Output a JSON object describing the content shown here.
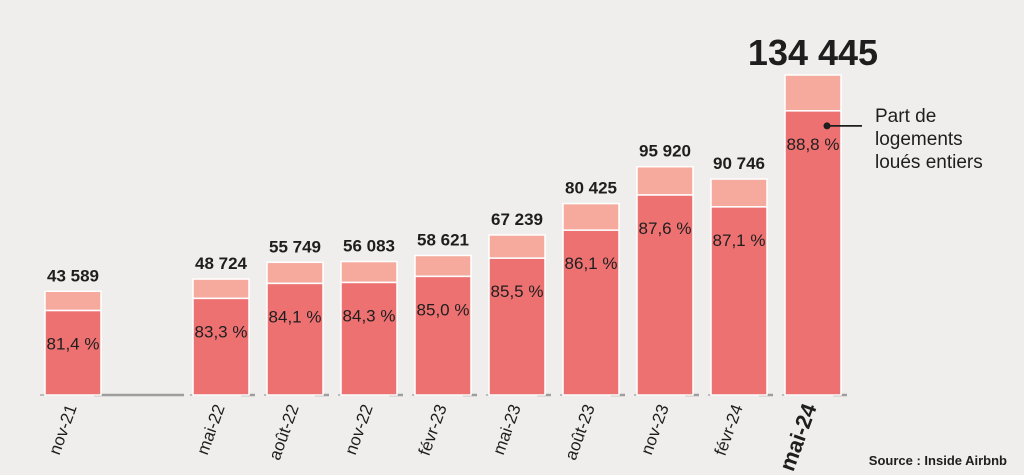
{
  "chart_data": {
    "type": "bar",
    "stacked": true,
    "categories": [
      "nov-21",
      "mai-22",
      "août-22",
      "nov-22",
      "févr-23",
      "mai-23",
      "août-23",
      "nov-23",
      "févr-24",
      "mai-24"
    ],
    "totals": [
      43589,
      48724,
      55749,
      56083,
      58621,
      67239,
      80425,
      95920,
      90746,
      134445
    ],
    "total_labels": [
      "43 589",
      "48 724",
      "55 749",
      "56 083",
      "58 621",
      "67 239",
      "80 425",
      "95 920",
      "90 746",
      "134 445"
    ],
    "share_entire": [
      81.4,
      83.3,
      84.1,
      84.3,
      85.0,
      85.5,
      86.1,
      87.6,
      87.1,
      88.8
    ],
    "share_labels": [
      "81,4 %",
      "83,3 %",
      "84,1 %",
      "84,3 %",
      "85,0 %",
      "85,5 %",
      "86,1 %",
      "87,6 %",
      "87,1 %",
      "88,8 %"
    ],
    "highlight_category": "mai-24",
    "gap_after_index": 0,
    "legend": [
      "Part de",
      "logements",
      "loués entiers"
    ],
    "colors": {
      "entire": "#ee7172",
      "other": "#f5aa9d",
      "background": "#efeeec",
      "baseline": "#9e9e9e"
    }
  },
  "source": "Source : Inside Airbnb"
}
